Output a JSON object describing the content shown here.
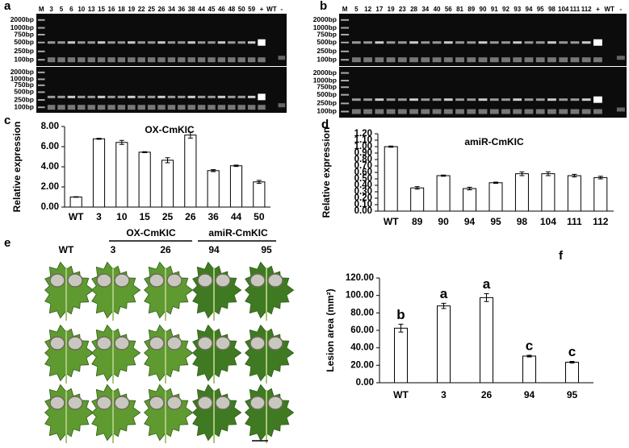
{
  "gels": [
    {
      "panel": "a",
      "lanes": [
        "M",
        "3",
        "5",
        "6",
        "10",
        "13",
        "15",
        "16",
        "18",
        "19",
        "22",
        "25",
        "26",
        "34",
        "36",
        "38",
        "44",
        "45",
        "46",
        "48",
        "50",
        "59",
        "+",
        "WT",
        "-"
      ],
      "ladders": [
        [
          "2000bp",
          "1000bp",
          "750bp",
          "500bp",
          "250bp",
          "100bp"
        ],
        [
          "2000bp",
          "1000bp",
          "750bp",
          "500bp",
          "250bp",
          "100bp"
        ]
      ]
    },
    {
      "panel": "b",
      "lanes": [
        "M",
        "5",
        "12",
        "17",
        "19",
        "23",
        "28",
        "34",
        "40",
        "56",
        "81",
        "89",
        "90",
        "91",
        "92",
        "93",
        "94",
        "95",
        "98",
        "104",
        "111",
        "112",
        "+",
        "WT",
        "-"
      ],
      "ladders": [
        [
          "2000bp",
          "1000bp",
          "750bp",
          "500bp",
          "250bp",
          "100bp"
        ],
        [
          "2000bp",
          "1000bp",
          "750bp",
          "500bp",
          "250bp",
          "100bp"
        ]
      ]
    }
  ],
  "leaf_panel": {
    "panel": "e",
    "columns": [
      "WT",
      "3",
      "26",
      "94",
      "95"
    ],
    "groups": [
      "OX-CmKIC",
      "amiR-CmKIC"
    ]
  },
  "chart_data": [
    {
      "type": "bar",
      "panel": "c",
      "title": "OX-CmKIC",
      "y_label": "Relative expression",
      "categories": [
        "WT",
        "3",
        "10",
        "15",
        "25",
        "26",
        "36",
        "44",
        "50"
      ],
      "values": [
        1.0,
        6.78,
        6.42,
        5.45,
        4.65,
        7.15,
        3.62,
        4.1,
        2.5
      ],
      "errors": [
        0.03,
        0.05,
        0.2,
        0.05,
        0.25,
        0.3,
        0.1,
        0.07,
        0.15
      ],
      "color": "#ffffff",
      "ylim": [
        0,
        8
      ],
      "yticks": [
        {
          "value": 0,
          "label": "0.00"
        },
        {
          "value": 2,
          "label": "2.00"
        },
        {
          "value": 4,
          "label": "4.00"
        },
        {
          "value": 6,
          "label": "6.00"
        },
        {
          "value": 8,
          "label": "8.00"
        }
      ]
    },
    {
      "type": "bar",
      "panel": "d",
      "title": "amiR-CmKIC",
      "y_label": "Relative expression",
      "categories": [
        "WT",
        "89",
        "90",
        "94",
        "95",
        "98",
        "104",
        "111",
        "112"
      ],
      "values": [
        1.0,
        0.36,
        0.55,
        0.35,
        0.44,
        0.58,
        0.58,
        0.55,
        0.52
      ],
      "errors": [
        0.01,
        0.02,
        0.01,
        0.02,
        0.01,
        0.03,
        0.03,
        0.02,
        0.02
      ],
      "color": "#ffffff",
      "ylim": [
        0,
        1.2
      ],
      "yticks": [
        {
          "value": 0,
          "label": "0.00"
        },
        {
          "value": 0.1,
          "label": "0.10"
        },
        {
          "value": 0.2,
          "label": "0.20"
        },
        {
          "value": 0.3,
          "label": "0.30"
        },
        {
          "value": 0.4,
          "label": "0.40"
        },
        {
          "value": 0.5,
          "label": "0.50"
        },
        {
          "value": 0.6,
          "label": "0.60"
        },
        {
          "value": 0.7,
          "label": "0.70"
        },
        {
          "value": 0.8,
          "label": "0.80"
        },
        {
          "value": 0.9,
          "label": "0.90"
        },
        {
          "value": 1.0,
          "label": "1.00"
        },
        {
          "value": 1.1,
          "label": "1.10"
        },
        {
          "value": 1.2,
          "label": "1.20"
        }
      ]
    },
    {
      "type": "bar",
      "panel": "f",
      "y_label": "Lesion area (mm²)",
      "categories": [
        "WT",
        "3",
        "26",
        "94",
        "95"
      ],
      "values": [
        62.5,
        88,
        97.5,
        30.5,
        23.5
      ],
      "errors": [
        4.5,
        3,
        4.5,
        1,
        1
      ],
      "annotations": [
        "b",
        "a",
        "a",
        "c",
        "c"
      ],
      "color": "#ffffff",
      "ylim": [
        0,
        120
      ],
      "yticks": [
        {
          "value": 0,
          "label": "0.00"
        },
        {
          "value": 20,
          "label": "20.00"
        },
        {
          "value": 40,
          "label": "40.00"
        },
        {
          "value": 60,
          "label": "60.00"
        },
        {
          "value": 80,
          "label": "80.00"
        },
        {
          "value": 100,
          "label": "100.00"
        },
        {
          "value": 120,
          "label": "120.00"
        }
      ]
    }
  ]
}
